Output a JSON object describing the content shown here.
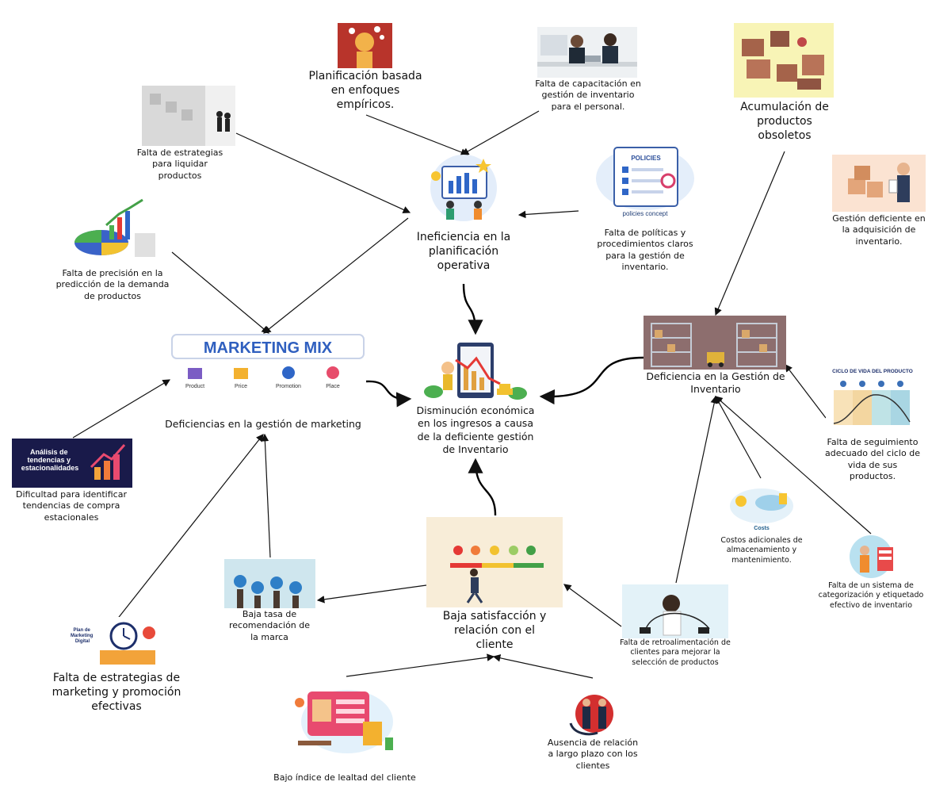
{
  "center": {
    "label": "Disminución económica en los ingresos a causa de la deficiente gestión de Inventario"
  },
  "planning": {
    "label": "Ineficiencia en la planificación operativa",
    "causes": {
      "empirical": "Planificación basada en enfoques empíricos.",
      "training": "Falta de capacitación en gestión de inventario para el personal.",
      "liquidate": "Falta de estrategias para liquidar productos",
      "policies": "Falta de políticas y procedimientos claros para la gestión de inventario.",
      "policies_img_title": "POLICIES",
      "policies_img_caption": "policies concept"
    }
  },
  "marketing": {
    "label": "Deficiencias en la gestión de marketing",
    "banner_title": "MARKETING MIX",
    "mix_items": [
      "Product",
      "Price",
      "Promotion",
      "Place"
    ],
    "causes": {
      "forecast": "Falta de precisión en la predicción de la demanda de productos",
      "seasonal": "Dificultad para identificar tendencias de compra estacionales",
      "seasonal_img_title": "Análisis de tendencias y estacionalidades",
      "strategies": "Falta de estrategias de marketing y promoción efectivas",
      "strategies_img_title": "Plan de Marketing Digital",
      "recommendation": "Baja tasa de recomendación de la marca"
    }
  },
  "inventory": {
    "label": "Deficiencia en la Gestión de Inventario",
    "causes": {
      "obsolete": "Acumulación de productos obsoletos",
      "acquisition": "Gestión deficiente en la adquisición de inventario.",
      "lifecycle": "Falta de seguimiento adecuado del ciclo de vida de sus productos.",
      "lifecycle_img_title": "CICLO DE VIDA DEL PRODUCTO",
      "costs": "Costos adicionales de almacenamiento y mantenimiento.",
      "costs_img_caption": "Costs",
      "categorization": "Falta de un sistema de categorización y etiquetado efectivo de inventario"
    }
  },
  "satisfaction": {
    "label": "Baja satisfacción y relación con el cliente",
    "causes": {
      "feedback": "Falta de retroalimentación de clientes para mejorar la selección de productos",
      "loyalty": "Bajo índice de lealtad del cliente",
      "relationship": "Ausencia de relación a largo plazo con los clientes"
    }
  }
}
